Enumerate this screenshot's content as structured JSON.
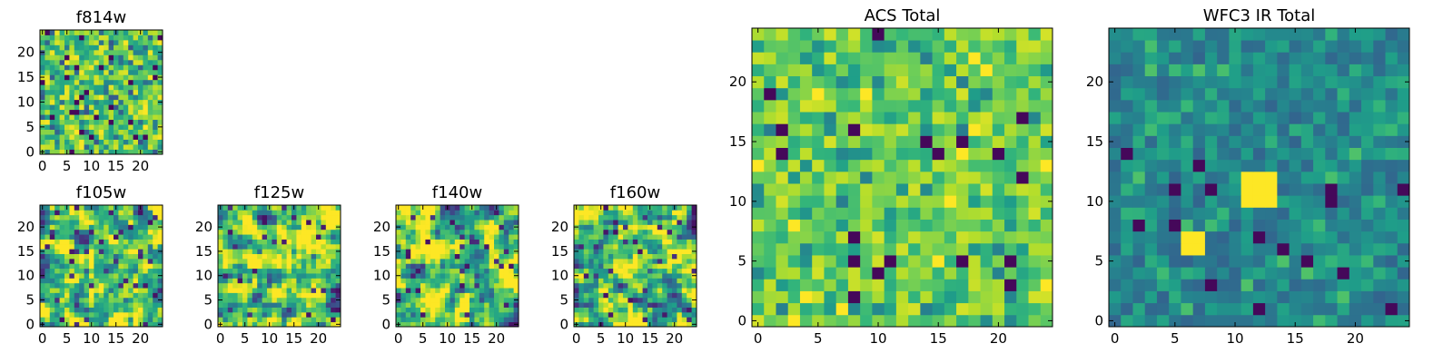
{
  "chart_data": [
    {
      "type": "heatmap",
      "title": "f814w",
      "grid_size": 25,
      "xlim": [
        0,
        25
      ],
      "ylim": [
        0,
        25
      ],
      "xticks": [
        0,
        5,
        10,
        15,
        20
      ],
      "yticks": [
        0,
        5,
        10,
        15,
        20
      ],
      "seed": 11,
      "mode": "pixel",
      "value_range": [
        0,
        1
      ]
    },
    {
      "type": "heatmap",
      "title": "f105w",
      "grid_size": 25,
      "xlim": [
        0,
        25
      ],
      "ylim": [
        0,
        25
      ],
      "xticks": [
        0,
        5,
        10,
        15,
        20
      ],
      "yticks": [
        0,
        5,
        10,
        15,
        20
      ],
      "seed": 23,
      "mode": "smooth",
      "value_range": [
        0,
        1
      ]
    },
    {
      "type": "heatmap",
      "title": "f125w",
      "grid_size": 25,
      "xlim": [
        0,
        25
      ],
      "ylim": [
        0,
        25
      ],
      "xticks": [
        0,
        5,
        10,
        15,
        20
      ],
      "yticks": [
        0,
        5,
        10,
        15,
        20
      ],
      "seed": 37,
      "mode": "smooth",
      "value_range": [
        0,
        1
      ]
    },
    {
      "type": "heatmap",
      "title": "f140w",
      "grid_size": 25,
      "xlim": [
        0,
        25
      ],
      "ylim": [
        0,
        25
      ],
      "xticks": [
        0,
        5,
        10,
        15,
        20
      ],
      "yticks": [
        0,
        5,
        10,
        15,
        20
      ],
      "seed": 41,
      "mode": "smooth",
      "value_range": [
        0,
        1
      ]
    },
    {
      "type": "heatmap",
      "title": "f160w",
      "grid_size": 25,
      "xlim": [
        0,
        25
      ],
      "ylim": [
        0,
        25
      ],
      "xticks": [
        0,
        5,
        10,
        15,
        20
      ],
      "yticks": [
        0,
        5,
        10,
        15,
        20
      ],
      "seed": 53,
      "mode": "smooth",
      "value_range": [
        0,
        1
      ]
    },
    {
      "type": "heatmap",
      "title": "ACS Total",
      "grid_size": 25,
      "xlim": [
        0,
        25
      ],
      "ylim": [
        0,
        25
      ],
      "xticks": [
        0,
        5,
        10,
        15,
        20
      ],
      "yticks": [
        0,
        5,
        10,
        15,
        20
      ],
      "seed": 67,
      "mode": "acs",
      "value_range": [
        0,
        1
      ]
    },
    {
      "type": "heatmap",
      "title": "WFC3 IR Total",
      "grid_size": 25,
      "xlim": [
        0,
        25
      ],
      "ylim": [
        0,
        25
      ],
      "xticks": [
        0,
        5,
        10,
        15,
        20
      ],
      "yticks": [
        0,
        5,
        10,
        15,
        20
      ],
      "seed": 79,
      "mode": "ir",
      "value_range": [
        0,
        1
      ],
      "bright_blocks": [
        {
          "x0": 11,
          "x1": 14,
          "y0": 10,
          "y1": 13,
          "value": 1.0
        },
        {
          "x0": 6,
          "x1": 8,
          "y0": 6,
          "y1": 8,
          "value": 1.0
        }
      ]
    }
  ],
  "colormap": {
    "name": "viridis",
    "stops": [
      "#440154",
      "#482878",
      "#3e4989",
      "#31688e",
      "#26828e",
      "#1f9e89",
      "#35b779",
      "#6ece58",
      "#b5de2b",
      "#fde725"
    ]
  }
}
